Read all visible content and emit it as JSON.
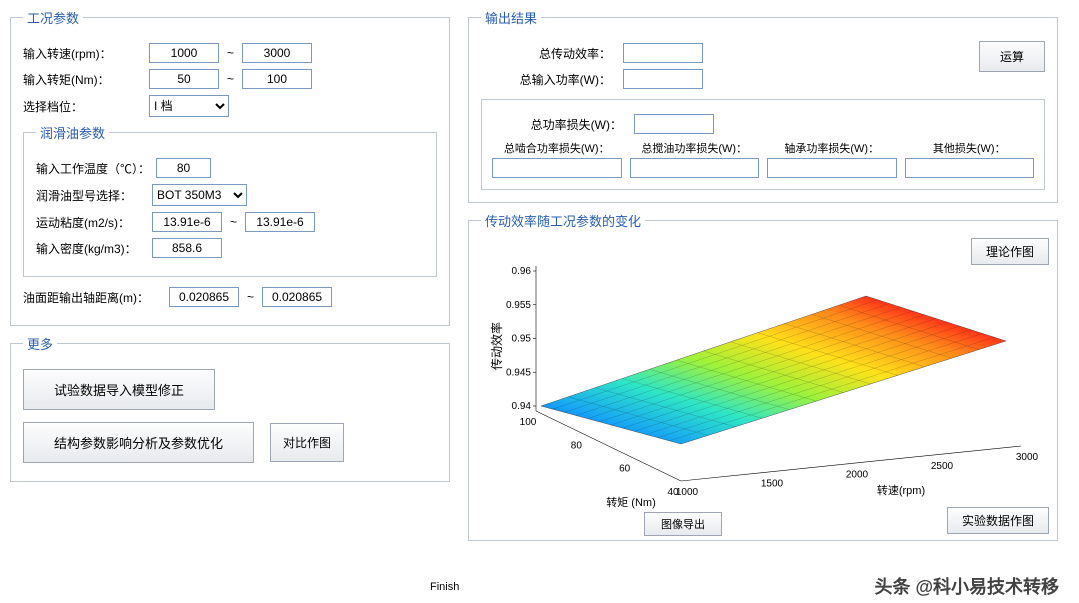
{
  "panels": {
    "working_params": "工况参数",
    "lubricant_params": "润滑油参数",
    "more": "更多",
    "output": "输出结果",
    "plot_title": "传动效率随工况参数的变化"
  },
  "labels": {
    "input_speed": "输入转速(rpm)：",
    "input_torque": "输入转矩(Nm)：",
    "select_gear": "选择档位：",
    "work_temp": "输入工作温度（℃）：",
    "oil_model_select": "润滑油型号选择：",
    "kin_visc": "运动粘度(m2/s)：",
    "density": "输入密度(kg/m3)：",
    "oil_level_dist": "油面距输出轴距离(m)：",
    "total_eff": "总传动效率：",
    "total_input_power": "总输入功率(W)：",
    "total_power_loss": "总功率损失(W)：",
    "mesh_loss": "总啮合功率损失(W)：",
    "churn_loss": "总搅油功率损失(W)：",
    "bearing_loss": "轴承功率损失(W)：",
    "other_loss": "其他损失(W)："
  },
  "values": {
    "speed_min": "1000",
    "speed_max": "3000",
    "torque_min": "50",
    "torque_max": "100",
    "gear": "I 档",
    "temp": "80",
    "oil_model": "BOT 350M3",
    "visc_min": "13.91e-6",
    "visc_max": "13.91e-6",
    "density": "858.6",
    "oil_dist_min": "0.020865",
    "oil_dist_max": "0.020865"
  },
  "buttons": {
    "run": "运算",
    "theory_plot": "理论作图",
    "exp_data_plot": "实验数据作图",
    "export_image": "图像导出",
    "import_test": "试验数据导入模型修正",
    "struct_param": "结构参数影响分析及参数优化",
    "compare_plot": "对比作图",
    "finish": "Finish"
  },
  "plot": {
    "zlabel": "传动效率",
    "xlabel": "转矩  (Nm)",
    "ylabel": "转速(rpm)",
    "z_ticks": [
      "0.96",
      "0.955",
      "0.95",
      "0.945",
      "0.94"
    ],
    "x_ticks": [
      "100",
      "80",
      "60",
      "40"
    ],
    "y_ticks": [
      "1000",
      "1500",
      "2000",
      "2500",
      "3000"
    ],
    "gradient_colors": [
      "#0432ff",
      "#17a4f5",
      "#2ee6c7",
      "#9df23b",
      "#ffe11a",
      "#ff8c1a",
      "#ff1a1a",
      "#c40000"
    ]
  },
  "watermark": "头条 @科小易技术转移"
}
